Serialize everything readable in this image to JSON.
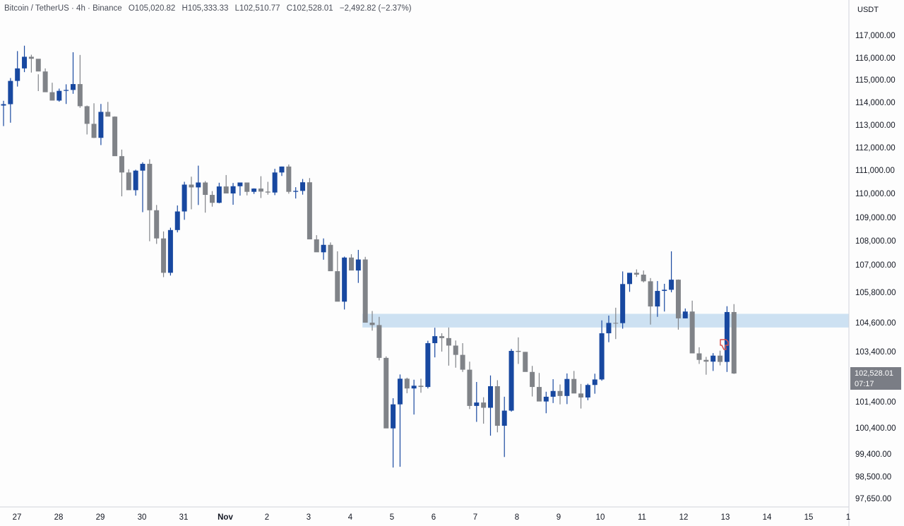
{
  "header": {
    "symbol": "Bitcoin / TetherUS · 4h · Binance",
    "open": "O105,020.82",
    "high": "H105,333.33",
    "low": "L102,510.77",
    "close": "C102,528.01",
    "change": "−2,492.82 (−2.37%)"
  },
  "price_axis": {
    "unit": "USDT",
    "ticks": [
      "117,000.00",
      "116,000.00",
      "115,000.00",
      "114,000.00",
      "113,000.00",
      "112,000.00",
      "111,000.00",
      "110,000.00",
      "109,000.00",
      "108,000.00",
      "107,000.00",
      "105,800.00",
      "104,600.00",
      "103,400.00",
      "101,400.00",
      "100,400.00",
      "99,400.00",
      "98,500.00",
      "97,650.00"
    ]
  },
  "current_price": {
    "value": "102,528.01",
    "countdown": "07:17"
  },
  "time_axis": {
    "labels": [
      "27",
      "28",
      "29",
      "30",
      "31",
      "Nov",
      "2",
      "3",
      "4",
      "5",
      "6",
      "7",
      "8",
      "9",
      "10",
      "11",
      "12",
      "13",
      "14",
      "15",
      "1"
    ]
  },
  "colors": {
    "up": "#1848a0",
    "down": "#808388",
    "zone": "#bcd7ee",
    "marker": "#d9534f"
  },
  "chart_data": {
    "type": "candlestick",
    "interval": "4h",
    "zone": [
      104400,
      104950
    ],
    "bars": [
      [
        113860,
        114070,
        112950,
        113920
      ],
      [
        113920,
        115080,
        113100,
        114950
      ],
      [
        114950,
        116300,
        114700,
        115520
      ],
      [
        115520,
        116540,
        115350,
        116050
      ],
      [
        116050,
        116140,
        115330,
        115960
      ],
      [
        115960,
        115250,
        114500,
        115380
      ],
      [
        115380,
        115520,
        114600,
        114450
      ],
      [
        114450,
        114870,
        114310,
        114080
      ],
      [
        114080,
        114610,
        114030,
        114510
      ],
      [
        114510,
        114800,
        113930,
        114550
      ],
      [
        114550,
        116250,
        114380,
        114810
      ],
      [
        114810,
        116130,
        113760,
        113830
      ],
      [
        113830,
        113860,
        112580,
        113050
      ],
      [
        113050,
        113960,
        112420,
        112430
      ],
      [
        112430,
        113930,
        112110,
        113580
      ],
      [
        113580,
        114020,
        113450,
        113370
      ],
      [
        113370,
        113380,
        111660,
        111620
      ],
      [
        111620,
        111910,
        109880,
        110900
      ],
      [
        110900,
        111040,
        110600,
        110140
      ],
      [
        110140,
        111020,
        109910,
        110980
      ],
      [
        110980,
        111350,
        109220,
        111280
      ],
      [
        111280,
        111480,
        107980,
        109300
      ],
      [
        109300,
        109520,
        107870,
        108100
      ],
      [
        108100,
        108400,
        106460,
        106650
      ],
      [
        106650,
        108560,
        106530,
        108460
      ],
      [
        108460,
        109500,
        108360,
        109250
      ],
      [
        109250,
        110500,
        108900,
        110380
      ],
      [
        110380,
        110720,
        109340,
        110260
      ],
      [
        110260,
        111200,
        109520,
        110470
      ],
      [
        110470,
        110530,
        109200,
        109940
      ],
      [
        109940,
        110100,
        109450,
        109610
      ],
      [
        109610,
        110460,
        109590,
        110300
      ],
      [
        110300,
        110790,
        110140,
        110000
      ],
      [
        110000,
        110450,
        109530,
        110310
      ],
      [
        110310,
        110360,
        109910,
        110470
      ],
      [
        110470,
        110470,
        109920,
        110070
      ],
      [
        110070,
        110220,
        109980,
        110210
      ],
      [
        110210,
        110740,
        109810,
        110080
      ],
      [
        110080,
        110500,
        109950,
        110040
      ],
      [
        110040,
        111060,
        109930,
        110900
      ],
      [
        110900,
        111160,
        110750,
        111160
      ],
      [
        111160,
        111250,
        109990,
        110070
      ],
      [
        110070,
        110270,
        109790,
        110110
      ],
      [
        110110,
        110620,
        109950,
        110480
      ],
      [
        110480,
        110660,
        108450,
        108060
      ],
      [
        108060,
        108240,
        107670,
        107520
      ],
      [
        107520,
        108100,
        107210,
        107830
      ],
      [
        107830,
        107930,
        106810,
        106720
      ],
      [
        106720,
        107560,
        105850,
        105430
      ],
      [
        105430,
        107340,
        105120,
        107300
      ],
      [
        107300,
        107440,
        106940,
        106750
      ],
      [
        106750,
        107620,
        106210,
        107220
      ],
      [
        107220,
        107330,
        104690,
        104600
      ],
      [
        104600,
        105060,
        104270,
        104500
      ],
      [
        104500,
        104830,
        103050,
        103150
      ],
      [
        103150,
        103210,
        100470,
        100380
      ],
      [
        100380,
        101540,
        98860,
        101300
      ],
      [
        101300,
        102490,
        98890,
        102320
      ],
      [
        102320,
        102360,
        101740,
        101930
      ],
      [
        101930,
        102280,
        100910,
        102040
      ],
      [
        102040,
        102320,
        101760,
        101990
      ],
      [
        101990,
        103850,
        101930,
        103750
      ],
      [
        103750,
        104390,
        103170,
        104040
      ],
      [
        104040,
        104160,
        103400,
        103960
      ],
      [
        103960,
        104400,
        102840,
        103650
      ],
      [
        103650,
        103860,
        102760,
        103270
      ],
      [
        103270,
        103750,
        102590,
        102680
      ],
      [
        102680,
        103000,
        101120,
        101240
      ],
      [
        101240,
        102190,
        100630,
        101370
      ],
      [
        101370,
        101580,
        100560,
        101170
      ],
      [
        101170,
        102450,
        100100,
        102020
      ],
      [
        102020,
        102260,
        100230,
        100480
      ],
      [
        100480,
        101600,
        99280,
        101060
      ],
      [
        101060,
        103510,
        101020,
        103430
      ],
      [
        103430,
        103990,
        102910,
        103390
      ],
      [
        103390,
        103390,
        102680,
        102590
      ],
      [
        102590,
        102830,
        101610,
        101990
      ],
      [
        101990,
        102550,
        101460,
        101410
      ],
      [
        101410,
        101800,
        100960,
        101600
      ],
      [
        101600,
        102300,
        101350,
        101830
      ],
      [
        101830,
        102090,
        101300,
        101630
      ],
      [
        101630,
        102530,
        101310,
        102310
      ],
      [
        102310,
        102630,
        101940,
        101730
      ],
      [
        101730,
        102110,
        101140,
        101570
      ],
      [
        101570,
        102120,
        101460,
        102070
      ],
      [
        102070,
        102520,
        101720,
        102290
      ],
      [
        102290,
        104690,
        102240,
        104160
      ],
      [
        104160,
        104880,
        103790,
        104590
      ],
      [
        104590,
        105190,
        103920,
        104580
      ],
      [
        104580,
        106710,
        104350,
        106160
      ],
      [
        106160,
        106580,
        105820,
        106650
      ],
      [
        106650,
        106800,
        106470,
        106570
      ],
      [
        106570,
        106750,
        106230,
        106280
      ],
      [
        106280,
        106420,
        104520,
        105240
      ],
      [
        105240,
        106290,
        104830,
        105860
      ],
      [
        105860,
        106170,
        105040,
        105910
      ],
      [
        105910,
        107560,
        105800,
        106350
      ],
      [
        106350,
        106360,
        104310,
        104770
      ],
      [
        104770,
        105160,
        104770,
        105040
      ],
      [
        105040,
        105470,
        103520,
        103330
      ],
      [
        103330,
        103580,
        102910,
        103070
      ],
      [
        103070,
        103190,
        102480,
        103000
      ],
      [
        103000,
        103340,
        102630,
        103240
      ],
      [
        103240,
        103440,
        102850,
        102990
      ],
      [
        102990,
        105250,
        102590,
        105020
      ],
      [
        105020,
        105333,
        102510,
        102528
      ]
    ]
  }
}
